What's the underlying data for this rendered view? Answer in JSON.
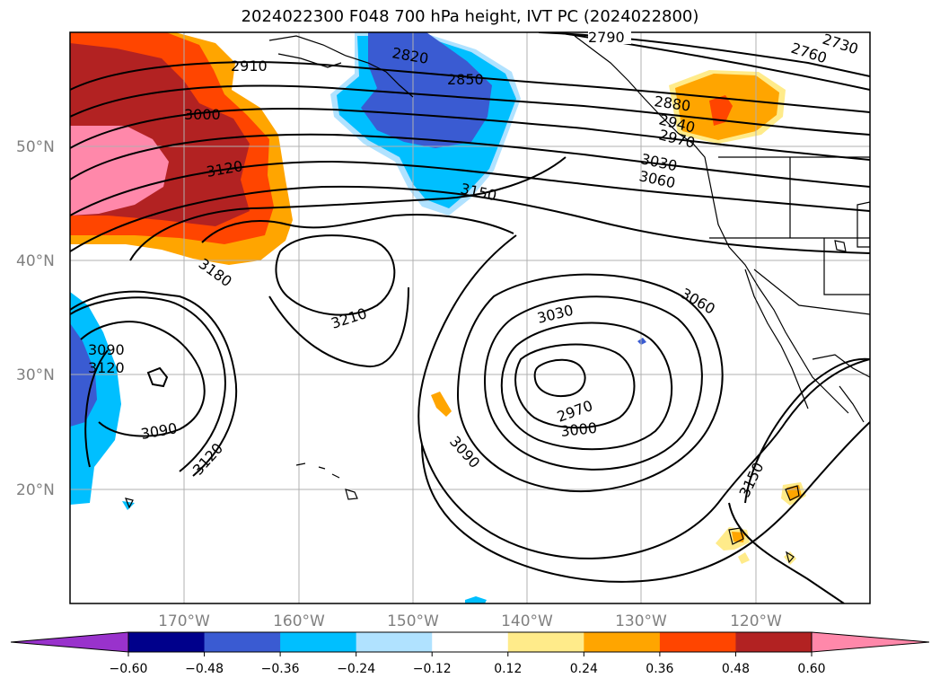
{
  "title": "2024022300 F048 700 hPa height, IVT PC (2024022800)",
  "map": {
    "lat_labels": [
      "50°N",
      "40°N",
      "30°N",
      "20°N"
    ],
    "lon_labels": [
      "170°W",
      "160°W",
      "150°W",
      "140°W",
      "130°W",
      "120°W"
    ],
    "contour_labels": [
      "2790",
      "2730",
      "2760",
      "2820",
      "2850",
      "2880",
      "2910",
      "2940",
      "2970",
      "3000",
      "3030",
      "3060",
      "3090",
      "3120",
      "3150",
      "3180",
      "3210",
      "3120",
      "3060",
      "3030",
      "2970",
      "3000",
      "3090",
      "3090",
      "3120",
      "3150"
    ]
  },
  "colorbar": {
    "ticks": [
      "−0.60",
      "−0.48",
      "−0.36",
      "−0.24",
      "−0.12",
      "0.12",
      "0.24",
      "0.36",
      "0.48",
      "0.60"
    ],
    "colors": [
      "#9932CC",
      "#00008B",
      "#3A5BD2",
      "#00BFFF",
      "#B0E2FF",
      "#FFFFFF",
      "#FFEB8A",
      "#FFA500",
      "#FF4500",
      "#B22222",
      "#FF88AA"
    ]
  }
}
